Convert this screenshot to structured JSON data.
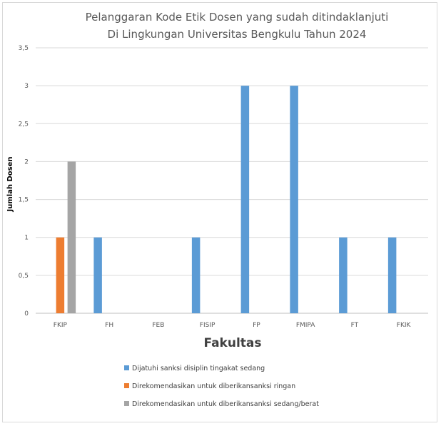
{
  "chart_data": {
    "type": "bar",
    "title": [
      "Pelanggaran Kode Etik Dosen yang sudah ditindaklanjuti",
      "Di Lingkungan Universitas Bengkulu Tahun 2024"
    ],
    "xlabel": "Fakultas",
    "ylabel": "Jumlah Dosen",
    "ylim": [
      0,
      3.5
    ],
    "yticks": [
      "0",
      "0,5",
      "1",
      "1,5",
      "2",
      "2,5",
      "3",
      "3,5"
    ],
    "grid": true,
    "legend_position": "bottom-left",
    "categories": [
      "FKIP",
      "FH",
      "FEB",
      "FISIP",
      "FP",
      "FMIPA",
      "FT",
      "FKIK"
    ],
    "series": [
      {
        "name": "Dijatuhi sanksi disiplin tingakat sedang",
        "color": "#5b9bd5",
        "values": [
          0,
          1,
          0,
          1,
          3,
          3,
          1,
          1
        ]
      },
      {
        "name": "Direkomendasikan untuk diberikansanksi ringan",
        "color": "#ed7d31",
        "values": [
          1,
          0,
          0,
          0,
          0,
          0,
          0,
          0
        ]
      },
      {
        "name": "Direkomendasikan untuk diberikansanksi sedang/berat",
        "color": "#a5a5a5",
        "values": [
          2,
          0,
          0,
          0,
          0,
          0,
          0,
          0
        ]
      }
    ]
  }
}
